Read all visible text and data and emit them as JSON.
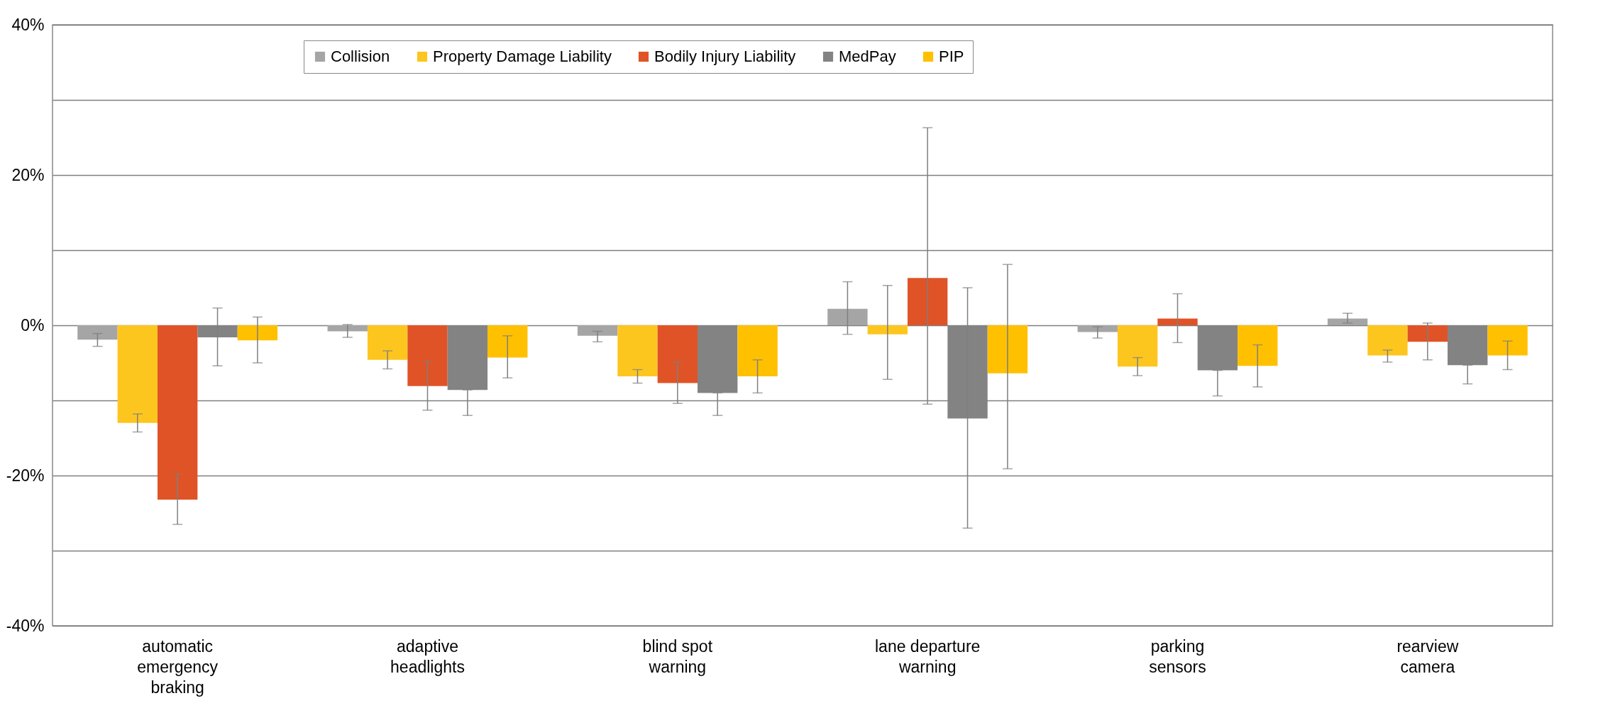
{
  "chart_data": {
    "type": "bar",
    "categories": [
      "automatic emergency braking",
      "adaptive headlights",
      "blind spot warning",
      "lane departure warning",
      "parking sensors",
      "rearview camera"
    ],
    "ylim": [
      -40,
      40
    ],
    "yticks": [
      {
        "value": -40,
        "label": "-40%"
      },
      {
        "value": -30,
        "label": null
      },
      {
        "value": -20,
        "label": "-20%"
      },
      {
        "value": -10,
        "label": null
      },
      {
        "value": 0,
        "label": "0%"
      },
      {
        "value": 10,
        "label": null
      },
      {
        "value": 20,
        "label": "20%"
      },
      {
        "value": 30,
        "label": null
      },
      {
        "value": 40,
        "label": "40%"
      }
    ],
    "grid": "y",
    "legend": "top",
    "series": [
      {
        "name": "Collision",
        "color": "#a5a5a5",
        "values": [
          -1.9,
          -0.8,
          -1.4,
          2.2,
          -0.9,
          0.9
        ],
        "errors": [
          [
            -2.8,
            -1.1
          ],
          [
            -1.6,
            0.1
          ],
          [
            -2.2,
            -0.8
          ],
          [
            -1.2,
            5.8
          ],
          [
            -1.7,
            -0.2
          ],
          [
            0.3,
            1.6
          ]
        ]
      },
      {
        "name": "Property Damage Liability",
        "color": "#fdc61f",
        "values": [
          -13.0,
          -4.6,
          -6.8,
          -1.2,
          -5.5,
          -4.0
        ],
        "errors": [
          [
            -14.2,
            -11.8
          ],
          [
            -5.8,
            -3.4
          ],
          [
            -7.7,
            -5.9
          ],
          [
            -7.2,
            5.3
          ],
          [
            -6.7,
            -4.3
          ],
          [
            -4.9,
            -3.3
          ]
        ]
      },
      {
        "name": "Bodily Injury Liability",
        "color": "#e05326",
        "values": [
          -23.2,
          -8.1,
          -7.7,
          6.3,
          0.9,
          -2.2
        ],
        "errors": [
          [
            -26.5,
            -19.8
          ],
          [
            -11.3,
            -4.8
          ],
          [
            -10.4,
            -4.9
          ],
          [
            -10.5,
            26.3
          ],
          [
            -2.3,
            4.2
          ],
          [
            -4.6,
            0.3
          ]
        ]
      },
      {
        "name": "MedPay",
        "color": "#838383",
        "values": [
          -1.6,
          -8.6,
          -9.0,
          -12.4,
          -6.0,
          -5.3
        ],
        "errors": [
          [
            -5.4,
            2.3
          ],
          [
            -12.0,
            -8.6
          ],
          [
            -12.0,
            -9.0
          ],
          [
            -27.0,
            5.0
          ],
          [
            -9.4,
            -6.0
          ],
          [
            -7.8,
            -5.3
          ]
        ]
      },
      {
        "name": "PIP",
        "color": "#ffc000",
        "values": [
          -2.0,
          -4.3,
          -6.8,
          -6.4,
          -5.4,
          -4.0
        ],
        "errors": [
          [
            -5.0,
            1.1
          ],
          [
            -7.0,
            -1.4
          ],
          [
            -9.0,
            -4.6
          ],
          [
            -19.1,
            8.1
          ],
          [
            -8.2,
            -2.6
          ],
          [
            -5.9,
            -2.1
          ]
        ]
      }
    ]
  }
}
